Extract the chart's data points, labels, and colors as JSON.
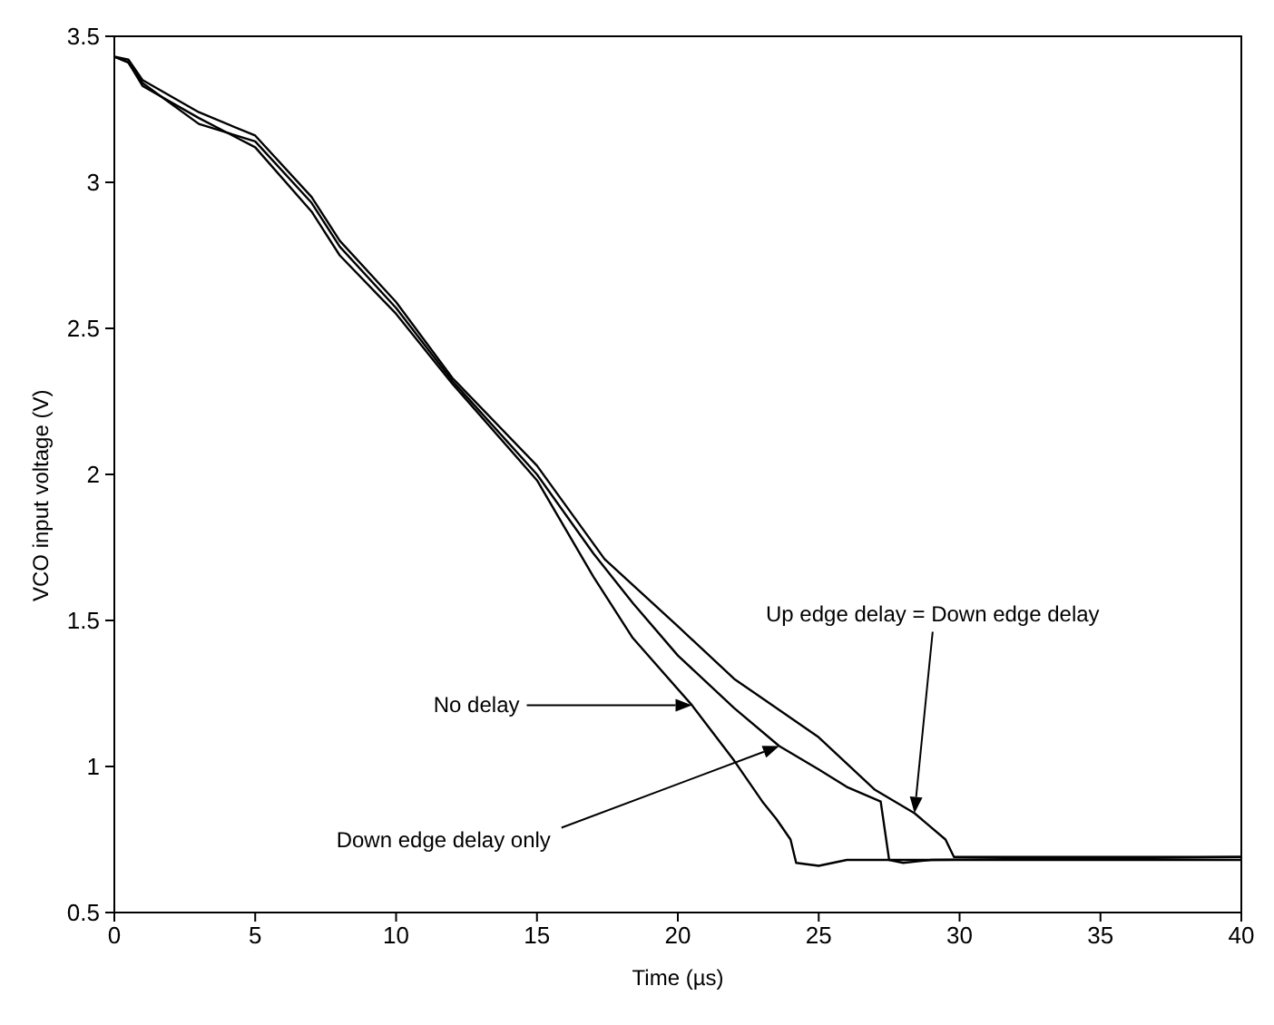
{
  "chart_data": {
    "type": "line",
    "xlabel": "Time (µs)",
    "ylabel": "VCO input voltage (V)",
    "xlim": [
      0,
      40
    ],
    "ylim": [
      0.5,
      3.5
    ],
    "xticks": [
      0,
      5,
      10,
      15,
      20,
      25,
      30,
      35,
      40
    ],
    "yticks": [
      0.5,
      1,
      1.5,
      2,
      2.5,
      3,
      3.5
    ],
    "marker": "none",
    "line_style": "solid",
    "series": [
      {
        "color": "#000000",
        "x": [
          0,
          0.5,
          1,
          3,
          5,
          7,
          8,
          10,
          12,
          15,
          17,
          18.4,
          20.5,
          22,
          22.5,
          23,
          23.5,
          24,
          24.2,
          25,
          26,
          40
        ],
        "values": [
          3.43,
          3.41,
          3.33,
          3.22,
          3.12,
          2.9,
          2.75,
          2.55,
          2.31,
          1.98,
          1.65,
          1.44,
          1.21,
          1.02,
          0.95,
          0.88,
          0.82,
          0.75,
          0.67,
          0.66,
          0.68,
          0.68
        ]
      },
      {
        "color": "#000000",
        "x": [
          0,
          0.5,
          1,
          3,
          5,
          7,
          8,
          10,
          12,
          15,
          17,
          18.4,
          20,
          22,
          23.6,
          25,
          26,
          27.2,
          27.5,
          28,
          29,
          40
        ],
        "values": [
          3.43,
          3.41,
          3.34,
          3.2,
          3.14,
          2.93,
          2.78,
          2.57,
          2.32,
          2.0,
          1.73,
          1.56,
          1.38,
          1.2,
          1.07,
          0.99,
          0.93,
          0.88,
          0.68,
          0.67,
          0.68,
          0.69
        ]
      },
      {
        "color": "#000000",
        "x": [
          0,
          0.5,
          1,
          3,
          5,
          7,
          8,
          10,
          12,
          15,
          17.4,
          20,
          22,
          25,
          27,
          28.4,
          29.5,
          29.8,
          40
        ],
        "values": [
          3.43,
          3.42,
          3.35,
          3.24,
          3.16,
          2.95,
          2.8,
          2.59,
          2.33,
          2.03,
          1.71,
          1.48,
          1.3,
          1.1,
          0.92,
          0.84,
          0.75,
          0.69,
          0.69
        ]
      }
    ],
    "annotations": [
      {
        "text": "No delay",
        "x": 20.5,
        "y": 1.21
      },
      {
        "text": "Down edge delay only",
        "x": 23.6,
        "y": 1.07
      },
      {
        "text": "Up edge delay = Down edge delay",
        "x": 28.4,
        "y": 0.84
      }
    ]
  }
}
